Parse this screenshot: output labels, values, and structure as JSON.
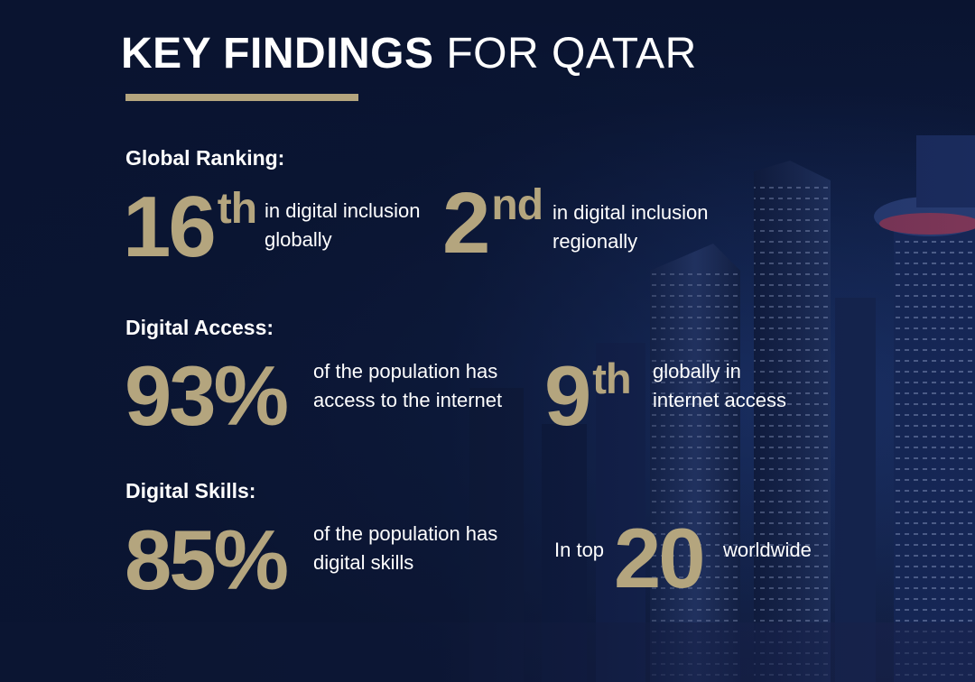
{
  "title": {
    "bold": "KEY FINDINGS",
    "light": "FOR QATAR"
  },
  "colors": {
    "accent": "#b4a57e",
    "background": "#0b1633"
  },
  "sections": [
    {
      "label": "Global Ranking:",
      "stats": [
        {
          "number": "16",
          "suffix": "th",
          "text_line1": "in digital inclusion",
          "text_line2": "globally"
        },
        {
          "number": "2",
          "suffix": "nd",
          "text_line1": "in digital inclusion",
          "text_line2": "regionally"
        }
      ]
    },
    {
      "label": "Digital Access:",
      "stats": [
        {
          "number": "93%",
          "text_line1": "of the population has",
          "text_line2": "access to the internet"
        },
        {
          "number": "9",
          "suffix": "th",
          "text_line1": "globally in",
          "text_line2": "internet access"
        }
      ]
    },
    {
      "label": "Digital Skills:",
      "stats": [
        {
          "number": "85%",
          "text_line1": "of the population has",
          "text_line2": "digital skills"
        },
        {
          "prefix": "In top",
          "number": "20",
          "text_after": "worldwide"
        }
      ]
    }
  ]
}
